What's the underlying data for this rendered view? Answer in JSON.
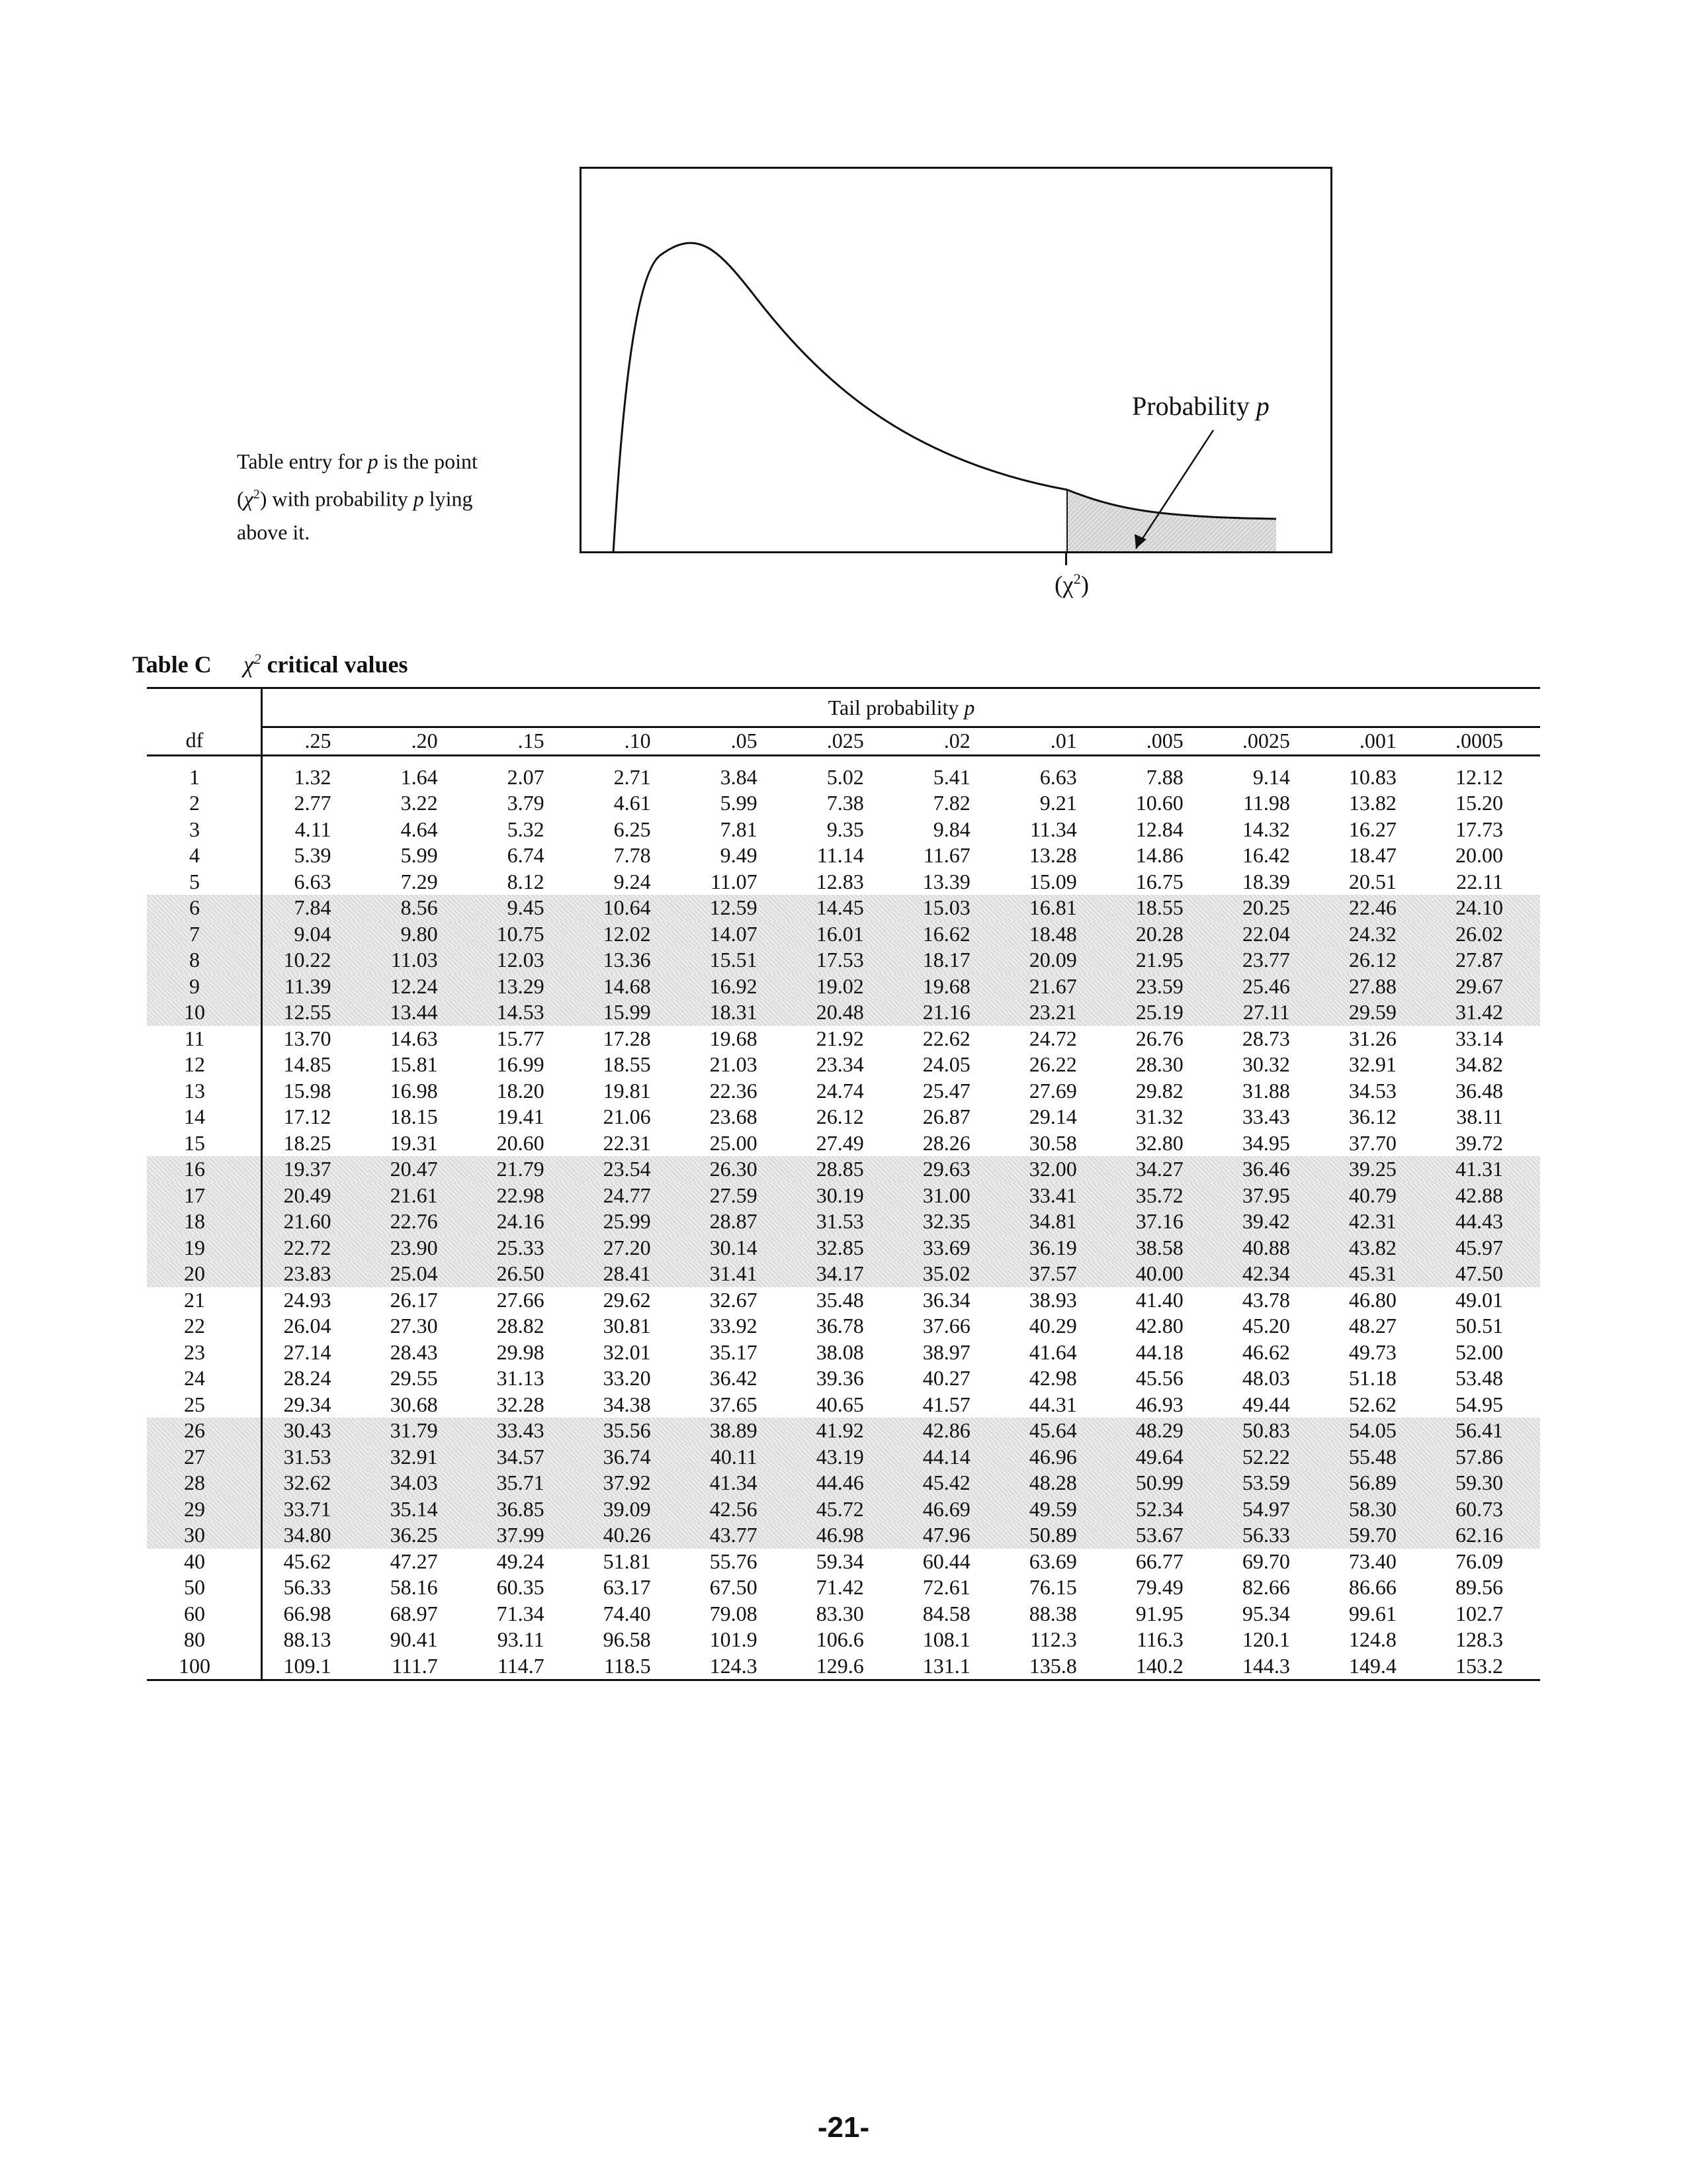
{
  "figure": {
    "probability_label": "Probability ",
    "probability_symbol": "p",
    "axis_label_open": "(χ",
    "axis_label_sup": "2",
    "axis_label_close": ")"
  },
  "explanation": {
    "line1_a": "Table entry for ",
    "line1_p": "p",
    "line1_b": " is the point",
    "line2_a": "(",
    "line2_chi": "χ",
    "line2_sup": "2",
    "line2_b": ")  with probability ",
    "line2_p": "p",
    "line2_c": " lying",
    "line3": "above it."
  },
  "table": {
    "label": "Table C",
    "title_chi": "χ",
    "title_sup": "2",
    "title_text": " critical values",
    "tail_caption": "Tail probability ",
    "tail_symbol": "p",
    "df_header": "df",
    "columns": [
      ".25",
      ".20",
      ".15",
      ".10",
      ".05",
      ".025",
      ".02",
      ".01",
      ".005",
      ".0025",
      ".001",
      ".0005"
    ],
    "rows": [
      {
        "df": "1",
        "v": [
          "1.32",
          "1.64",
          "2.07",
          "2.71",
          "3.84",
          "5.02",
          "5.41",
          "6.63",
          "7.88",
          "9.14",
          "10.83",
          "12.12"
        ]
      },
      {
        "df": "2",
        "v": [
          "2.77",
          "3.22",
          "3.79",
          "4.61",
          "5.99",
          "7.38",
          "7.82",
          "9.21",
          "10.60",
          "11.98",
          "13.82",
          "15.20"
        ]
      },
      {
        "df": "3",
        "v": [
          "4.11",
          "4.64",
          "5.32",
          "6.25",
          "7.81",
          "9.35",
          "9.84",
          "11.34",
          "12.84",
          "14.32",
          "16.27",
          "17.73"
        ]
      },
      {
        "df": "4",
        "v": [
          "5.39",
          "5.99",
          "6.74",
          "7.78",
          "9.49",
          "11.14",
          "11.67",
          "13.28",
          "14.86",
          "16.42",
          "18.47",
          "20.00"
        ]
      },
      {
        "df": "5",
        "v": [
          "6.63",
          "7.29",
          "8.12",
          "9.24",
          "11.07",
          "12.83",
          "13.39",
          "15.09",
          "16.75",
          "18.39",
          "20.51",
          "22.11"
        ]
      },
      {
        "df": "6",
        "v": [
          "7.84",
          "8.56",
          "9.45",
          "10.64",
          "12.59",
          "14.45",
          "15.03",
          "16.81",
          "18.55",
          "20.25",
          "22.46",
          "24.10"
        ]
      },
      {
        "df": "7",
        "v": [
          "9.04",
          "9.80",
          "10.75",
          "12.02",
          "14.07",
          "16.01",
          "16.62",
          "18.48",
          "20.28",
          "22.04",
          "24.32",
          "26.02"
        ]
      },
      {
        "df": "8",
        "v": [
          "10.22",
          "11.03",
          "12.03",
          "13.36",
          "15.51",
          "17.53",
          "18.17",
          "20.09",
          "21.95",
          "23.77",
          "26.12",
          "27.87"
        ]
      },
      {
        "df": "9",
        "v": [
          "11.39",
          "12.24",
          "13.29",
          "14.68",
          "16.92",
          "19.02",
          "19.68",
          "21.67",
          "23.59",
          "25.46",
          "27.88",
          "29.67"
        ]
      },
      {
        "df": "10",
        "v": [
          "12.55",
          "13.44",
          "14.53",
          "15.99",
          "18.31",
          "20.48",
          "21.16",
          "23.21",
          "25.19",
          "27.11",
          "29.59",
          "31.42"
        ]
      },
      {
        "df": "11",
        "v": [
          "13.70",
          "14.63",
          "15.77",
          "17.28",
          "19.68",
          "21.92",
          "22.62",
          "24.72",
          "26.76",
          "28.73",
          "31.26",
          "33.14"
        ]
      },
      {
        "df": "12",
        "v": [
          "14.85",
          "15.81",
          "16.99",
          "18.55",
          "21.03",
          "23.34",
          "24.05",
          "26.22",
          "28.30",
          "30.32",
          "32.91",
          "34.82"
        ]
      },
      {
        "df": "13",
        "v": [
          "15.98",
          "16.98",
          "18.20",
          "19.81",
          "22.36",
          "24.74",
          "25.47",
          "27.69",
          "29.82",
          "31.88",
          "34.53",
          "36.48"
        ]
      },
      {
        "df": "14",
        "v": [
          "17.12",
          "18.15",
          "19.41",
          "21.06",
          "23.68",
          "26.12",
          "26.87",
          "29.14",
          "31.32",
          "33.43",
          "36.12",
          "38.11"
        ]
      },
      {
        "df": "15",
        "v": [
          "18.25",
          "19.31",
          "20.60",
          "22.31",
          "25.00",
          "27.49",
          "28.26",
          "30.58",
          "32.80",
          "34.95",
          "37.70",
          "39.72"
        ]
      },
      {
        "df": "16",
        "v": [
          "19.37",
          "20.47",
          "21.79",
          "23.54",
          "26.30",
          "28.85",
          "29.63",
          "32.00",
          "34.27",
          "36.46",
          "39.25",
          "41.31"
        ]
      },
      {
        "df": "17",
        "v": [
          "20.49",
          "21.61",
          "22.98",
          "24.77",
          "27.59",
          "30.19",
          "31.00",
          "33.41",
          "35.72",
          "37.95",
          "40.79",
          "42.88"
        ]
      },
      {
        "df": "18",
        "v": [
          "21.60",
          "22.76",
          "24.16",
          "25.99",
          "28.87",
          "31.53",
          "32.35",
          "34.81",
          "37.16",
          "39.42",
          "42.31",
          "44.43"
        ]
      },
      {
        "df": "19",
        "v": [
          "22.72",
          "23.90",
          "25.33",
          "27.20",
          "30.14",
          "32.85",
          "33.69",
          "36.19",
          "38.58",
          "40.88",
          "43.82",
          "45.97"
        ]
      },
      {
        "df": "20",
        "v": [
          "23.83",
          "25.04",
          "26.50",
          "28.41",
          "31.41",
          "34.17",
          "35.02",
          "37.57",
          "40.00",
          "42.34",
          "45.31",
          "47.50"
        ]
      },
      {
        "df": "21",
        "v": [
          "24.93",
          "26.17",
          "27.66",
          "29.62",
          "32.67",
          "35.48",
          "36.34",
          "38.93",
          "41.40",
          "43.78",
          "46.80",
          "49.01"
        ]
      },
      {
        "df": "22",
        "v": [
          "26.04",
          "27.30",
          "28.82",
          "30.81",
          "33.92",
          "36.78",
          "37.66",
          "40.29",
          "42.80",
          "45.20",
          "48.27",
          "50.51"
        ]
      },
      {
        "df": "23",
        "v": [
          "27.14",
          "28.43",
          "29.98",
          "32.01",
          "35.17",
          "38.08",
          "38.97",
          "41.64",
          "44.18",
          "46.62",
          "49.73",
          "52.00"
        ]
      },
      {
        "df": "24",
        "v": [
          "28.24",
          "29.55",
          "31.13",
          "33.20",
          "36.42",
          "39.36",
          "40.27",
          "42.98",
          "45.56",
          "48.03",
          "51.18",
          "53.48"
        ]
      },
      {
        "df": "25",
        "v": [
          "29.34",
          "30.68",
          "32.28",
          "34.38",
          "37.65",
          "40.65",
          "41.57",
          "44.31",
          "46.93",
          "49.44",
          "52.62",
          "54.95"
        ]
      },
      {
        "df": "26",
        "v": [
          "30.43",
          "31.79",
          "33.43",
          "35.56",
          "38.89",
          "41.92",
          "42.86",
          "45.64",
          "48.29",
          "50.83",
          "54.05",
          "56.41"
        ]
      },
      {
        "df": "27",
        "v": [
          "31.53",
          "32.91",
          "34.57",
          "36.74",
          "40.11",
          "43.19",
          "44.14",
          "46.96",
          "49.64",
          "52.22",
          "55.48",
          "57.86"
        ]
      },
      {
        "df": "28",
        "v": [
          "32.62",
          "34.03",
          "35.71",
          "37.92",
          "41.34",
          "44.46",
          "45.42",
          "48.28",
          "50.99",
          "53.59",
          "56.89",
          "59.30"
        ]
      },
      {
        "df": "29",
        "v": [
          "33.71",
          "35.14",
          "36.85",
          "39.09",
          "42.56",
          "45.72",
          "46.69",
          "49.59",
          "52.34",
          "54.97",
          "58.30",
          "60.73"
        ]
      },
      {
        "df": "30",
        "v": [
          "34.80",
          "36.25",
          "37.99",
          "40.26",
          "43.77",
          "46.98",
          "47.96",
          "50.89",
          "53.67",
          "56.33",
          "59.70",
          "62.16"
        ]
      },
      {
        "df": "40",
        "v": [
          "45.62",
          "47.27",
          "49.24",
          "51.81",
          "55.76",
          "59.34",
          "60.44",
          "63.69",
          "66.77",
          "69.70",
          "73.40",
          "76.09"
        ]
      },
      {
        "df": "50",
        "v": [
          "56.33",
          "58.16",
          "60.35",
          "63.17",
          "67.50",
          "71.42",
          "72.61",
          "76.15",
          "79.49",
          "82.66",
          "86.66",
          "89.56"
        ]
      },
      {
        "df": "60",
        "v": [
          "66.98",
          "68.97",
          "71.34",
          "74.40",
          "79.08",
          "83.30",
          "84.58",
          "88.38",
          "91.95",
          "95.34",
          "99.61",
          "102.7"
        ]
      },
      {
        "df": "80",
        "v": [
          "88.13",
          "90.41",
          "93.11",
          "96.58",
          "101.9",
          "106.6",
          "108.1",
          "112.3",
          "116.3",
          "120.1",
          "124.8",
          "128.3"
        ]
      },
      {
        "df": "100",
        "v": [
          "109.1",
          "111.7",
          "114.7",
          "118.5",
          "124.3",
          "129.6",
          "131.1",
          "135.8",
          "140.2",
          "144.3",
          "149.4",
          "153.2"
        ]
      }
    ],
    "shaded_df": [
      "6",
      "7",
      "8",
      "9",
      "10",
      "16",
      "17",
      "18",
      "19",
      "20",
      "26",
      "27",
      "28",
      "29",
      "30"
    ]
  },
  "page_number": "-21-"
}
